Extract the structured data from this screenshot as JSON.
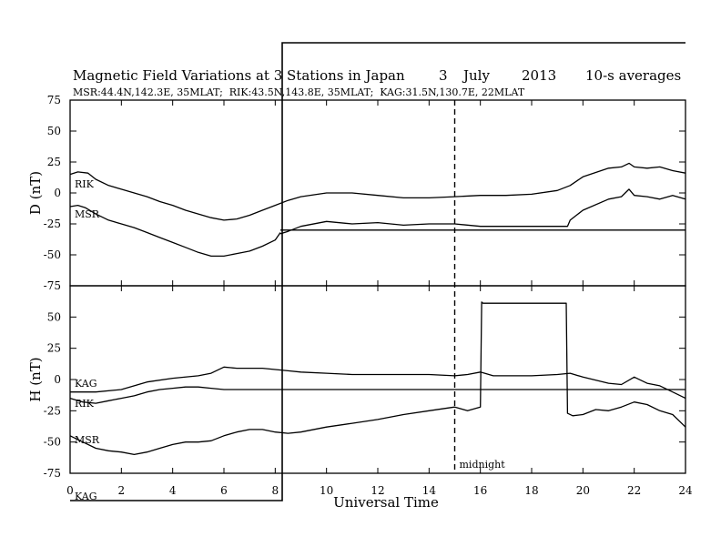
{
  "chart_data": {
    "type": "line",
    "title": "Magnetic Field Variations at 3 Stations in Japan",
    "date": {
      "day": "3",
      "month": "July",
      "year": "2013"
    },
    "averaging": "10-s averages",
    "stations_info": "MSR:44.4N,142.3E, 35MLAT;  RIK:43.5N,143.8E, 35MLAT;  KAG:31.5N,130.7E, 22MLAT",
    "xlabel": "Universal Time",
    "xlim": [
      0,
      24
    ],
    "xticks": [
      "0",
      "2",
      "4",
      "6",
      "8",
      "10",
      "12",
      "14",
      "16",
      "18",
      "20",
      "22",
      "24"
    ],
    "midnight_marker": {
      "x": 15,
      "label": "midnight"
    },
    "panels": [
      {
        "ylabel": "D (nT)",
        "ylim": [
          -75,
          75
        ],
        "yticks": [
          "75",
          "50",
          "25",
          "0",
          "-25",
          "-50",
          "-75"
        ],
        "series": [
          {
            "name": "RIK",
            "x": [
              0,
              0.3,
              0.7,
              1,
              1.5,
              2,
              2.5,
              3,
              3.5,
              4,
              4.5,
              5,
              5.5,
              6,
              6.5,
              7,
              7.5,
              8,
              8.5,
              9,
              10,
              11,
              12,
              13,
              14,
              15,
              16,
              17,
              18,
              19,
              19.5,
              20,
              21,
              21.5,
              21.8,
              22,
              22.5,
              23,
              23.5,
              24
            ],
            "values": [
              15,
              17,
              16,
              11,
              6,
              3,
              0,
              -3,
              -7,
              -10,
              -14,
              -17,
              -20,
              -22,
              -21,
              -18,
              -14,
              -10,
              -6,
              -3,
              0,
              0,
              -2,
              -4,
              -4,
              -3,
              -2,
              -2,
              -1,
              2,
              6,
              13,
              20,
              21,
              24,
              21,
              20,
              21,
              18,
              16
            ]
          },
          {
            "name": "MSR",
            "x": [
              0,
              0.3,
              0.6,
              1,
              1.5,
              2,
              2.5,
              3,
              3.5,
              4,
              4.5,
              5,
              5.5,
              6,
              6.5,
              7,
              7.5,
              8,
              8.2
            ],
            "values": [
              -11,
              -10,
              -12,
              -17,
              -22,
              -25,
              -28,
              -32,
              -36,
              -40,
              -44,
              -48,
              -51,
              -51,
              -49,
              -47,
              -43,
              -38,
              -32
            ]
          },
          {
            "name": "MSR",
            "x": [
              8.2,
              8.5,
              9,
              10,
              11,
              12,
              13,
              14,
              15,
              16,
              17,
              18,
              19.4,
              19.5,
              20,
              21,
              21.5,
              21.8,
              22,
              22.5,
              23,
              23.5,
              24
            ],
            "values": [
              -33,
              -31,
              -27,
              -23,
              -25,
              -24,
              -26,
              -25,
              -25,
              -27,
              -27,
              -27,
              -27,
              -22,
              -14,
              -5,
              -3,
              3,
              -2,
              -3,
              -5,
              -2,
              -5
            ]
          },
          {
            "name": "KAG",
            "x": [
              8.2,
              24
            ],
            "values": [
              -30,
              -30
            ]
          }
        ]
      },
      {
        "ylabel": "H (nT)",
        "ylim": [
          -75,
          75
        ],
        "yticks": [
          "50",
          "25",
          "0",
          "-25",
          "-50",
          "-75"
        ],
        "series": [
          {
            "name": "KAG",
            "x": [
              0,
              1,
              2,
              3,
              4,
              5,
              5.5,
              6,
              6.5,
              7,
              7.5,
              8,
              8.5,
              9,
              10,
              11,
              12,
              13,
              14,
              15,
              15.5,
              16,
              16.5,
              17,
              18,
              19,
              19.5,
              20,
              21,
              21.5,
              22,
              22.5,
              23,
              23.5,
              24
            ],
            "values": [
              -10,
              -10,
              -8,
              -2,
              1,
              3,
              5,
              10,
              9,
              9,
              9,
              8,
              7,
              6,
              5,
              4,
              4,
              4,
              4,
              3,
              4,
              6,
              3,
              3,
              3,
              4,
              5,
              2,
              -3,
              -4,
              2,
              -3,
              -5,
              -10,
              -15
            ]
          },
          {
            "name": "RIK",
            "x": [
              0,
              0.5,
              1,
              1.5,
              2,
              2.5,
              3,
              3.5,
              4,
              4.5,
              5,
              5.5,
              6,
              6.5,
              7,
              7.5,
              8,
              8.2
            ],
            "values": [
              -15,
              -18,
              -19,
              -17,
              -15,
              -13,
              -10,
              -8,
              -7,
              -6,
              -6,
              -7,
              -8,
              -8,
              -8,
              -8,
              -8,
              -8
            ]
          },
          {
            "name": "RIK",
            "x": [
              8.2,
              24
            ],
            "values": [
              -8,
              -8
            ]
          },
          {
            "name": "MSR",
            "x": [
              0,
              0.5,
              1,
              1.5,
              2,
              2.5,
              3,
              3.5,
              4,
              4.5,
              5,
              5.5,
              6,
              6.5,
              7,
              7.5,
              8,
              8.5,
              9,
              10,
              11,
              12,
              13,
              14,
              15,
              15.5,
              16,
              16.05,
              16.1,
              17,
              18,
              19,
              19.35,
              19.4,
              19.6,
              20,
              20.5,
              21,
              21.5,
              22,
              22.5,
              23,
              23.5,
              24
            ],
            "values": [
              -45,
              -50,
              -55,
              -57,
              -58,
              -60,
              -58,
              -55,
              -52,
              -50,
              -50,
              -49,
              -45,
              -42,
              -40,
              -40,
              -42,
              -43,
              -42,
              -38,
              -35,
              -32,
              -28,
              -25,
              -22,
              -25,
              -22,
              62,
              61,
              61,
              61,
              61,
              61,
              -27,
              -29,
              -28,
              -24,
              -25,
              -22,
              -18,
              -20,
              -25,
              -28,
              -38
            ]
          }
        ]
      }
    ],
    "station_labels": [
      "RIK",
      "MSR",
      "KAG",
      "RIK",
      "MSR",
      "KAG"
    ]
  }
}
